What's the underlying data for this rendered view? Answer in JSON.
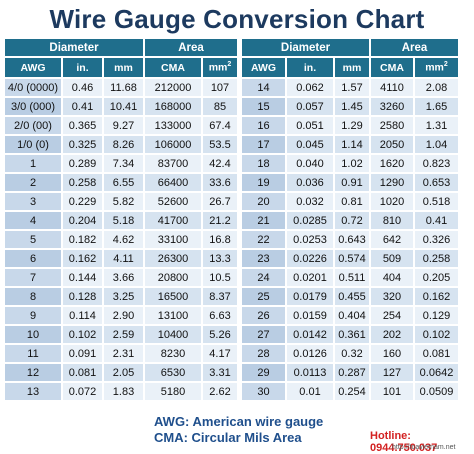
{
  "title": "Wire Gauge Conversion Chart",
  "headers": {
    "diameter": "Diameter",
    "area": "Area",
    "awg": "AWG",
    "in": "in.",
    "mm": "mm",
    "cma": "CMA",
    "mm2": "mm",
    "mm2_sup": "2"
  },
  "left_rows": [
    [
      "4/0 (0000)",
      "0.46",
      "11.68",
      "212000",
      "107"
    ],
    [
      "3/0 (000)",
      "0.41",
      "10.41",
      "168000",
      "85"
    ],
    [
      "2/0 (00)",
      "0.365",
      "9.27",
      "133000",
      "67.4"
    ],
    [
      "1/0 (0)",
      "0.325",
      "8.26",
      "106000",
      "53.5"
    ],
    [
      "1",
      "0.289",
      "7.34",
      "83700",
      "42.4"
    ],
    [
      "2",
      "0.258",
      "6.55",
      "66400",
      "33.6"
    ],
    [
      "3",
      "0.229",
      "5.82",
      "52600",
      "26.7"
    ],
    [
      "4",
      "0.204",
      "5.18",
      "41700",
      "21.2"
    ],
    [
      "5",
      "0.182",
      "4.62",
      "33100",
      "16.8"
    ],
    [
      "6",
      "0.162",
      "4.11",
      "26300",
      "13.3"
    ],
    [
      "7",
      "0.144",
      "3.66",
      "20800",
      "10.5"
    ],
    [
      "8",
      "0.128",
      "3.25",
      "16500",
      "8.37"
    ],
    [
      "9",
      "0.114",
      "2.90",
      "13100",
      "6.63"
    ],
    [
      "10",
      "0.102",
      "2.59",
      "10400",
      "5.26"
    ],
    [
      "11",
      "0.091",
      "2.31",
      "8230",
      "4.17"
    ],
    [
      "12",
      "0.081",
      "2.05",
      "6530",
      "3.31"
    ],
    [
      "13",
      "0.072",
      "1.83",
      "5180",
      "2.62"
    ]
  ],
  "right_rows": [
    [
      "14",
      "0.062",
      "1.57",
      "4110",
      "2.08"
    ],
    [
      "15",
      "0.057",
      "1.45",
      "3260",
      "1.65"
    ],
    [
      "16",
      "0.051",
      "1.29",
      "2580",
      "1.31"
    ],
    [
      "17",
      "0.045",
      "1.14",
      "2050",
      "1.04"
    ],
    [
      "18",
      "0.040",
      "1.02",
      "1620",
      "0.823"
    ],
    [
      "19",
      "0.036",
      "0.91",
      "1290",
      "0.653"
    ],
    [
      "20",
      "0.032",
      "0.81",
      "1020",
      "0.518"
    ],
    [
      "21",
      "0.0285",
      "0.72",
      "810",
      "0.41"
    ],
    [
      "22",
      "0.0253",
      "0.643",
      "642",
      "0.326"
    ],
    [
      "23",
      "0.0226",
      "0.574",
      "509",
      "0.258"
    ],
    [
      "24",
      "0.0201",
      "0.511",
      "404",
      "0.205"
    ],
    [
      "25",
      "0.0179",
      "0.455",
      "320",
      "0.162"
    ],
    [
      "26",
      "0.0159",
      "0.404",
      "254",
      "0.129"
    ],
    [
      "27",
      "0.0142",
      "0.361",
      "202",
      "0.102"
    ],
    [
      "28",
      "0.0126",
      "0.32",
      "160",
      "0.081"
    ],
    [
      "29",
      "0.0113",
      "0.287",
      "127",
      "0.0642"
    ],
    [
      "30",
      "0.01",
      "0.254",
      "101",
      "0.0509"
    ]
  ],
  "legend": {
    "awg": "AWG: American wire gauge",
    "cma": "CMA: Circular Mils Area"
  },
  "watermark": {
    "hotline": "Hotline: 0944.750.037",
    "site": "http://toavietnam.net"
  }
}
